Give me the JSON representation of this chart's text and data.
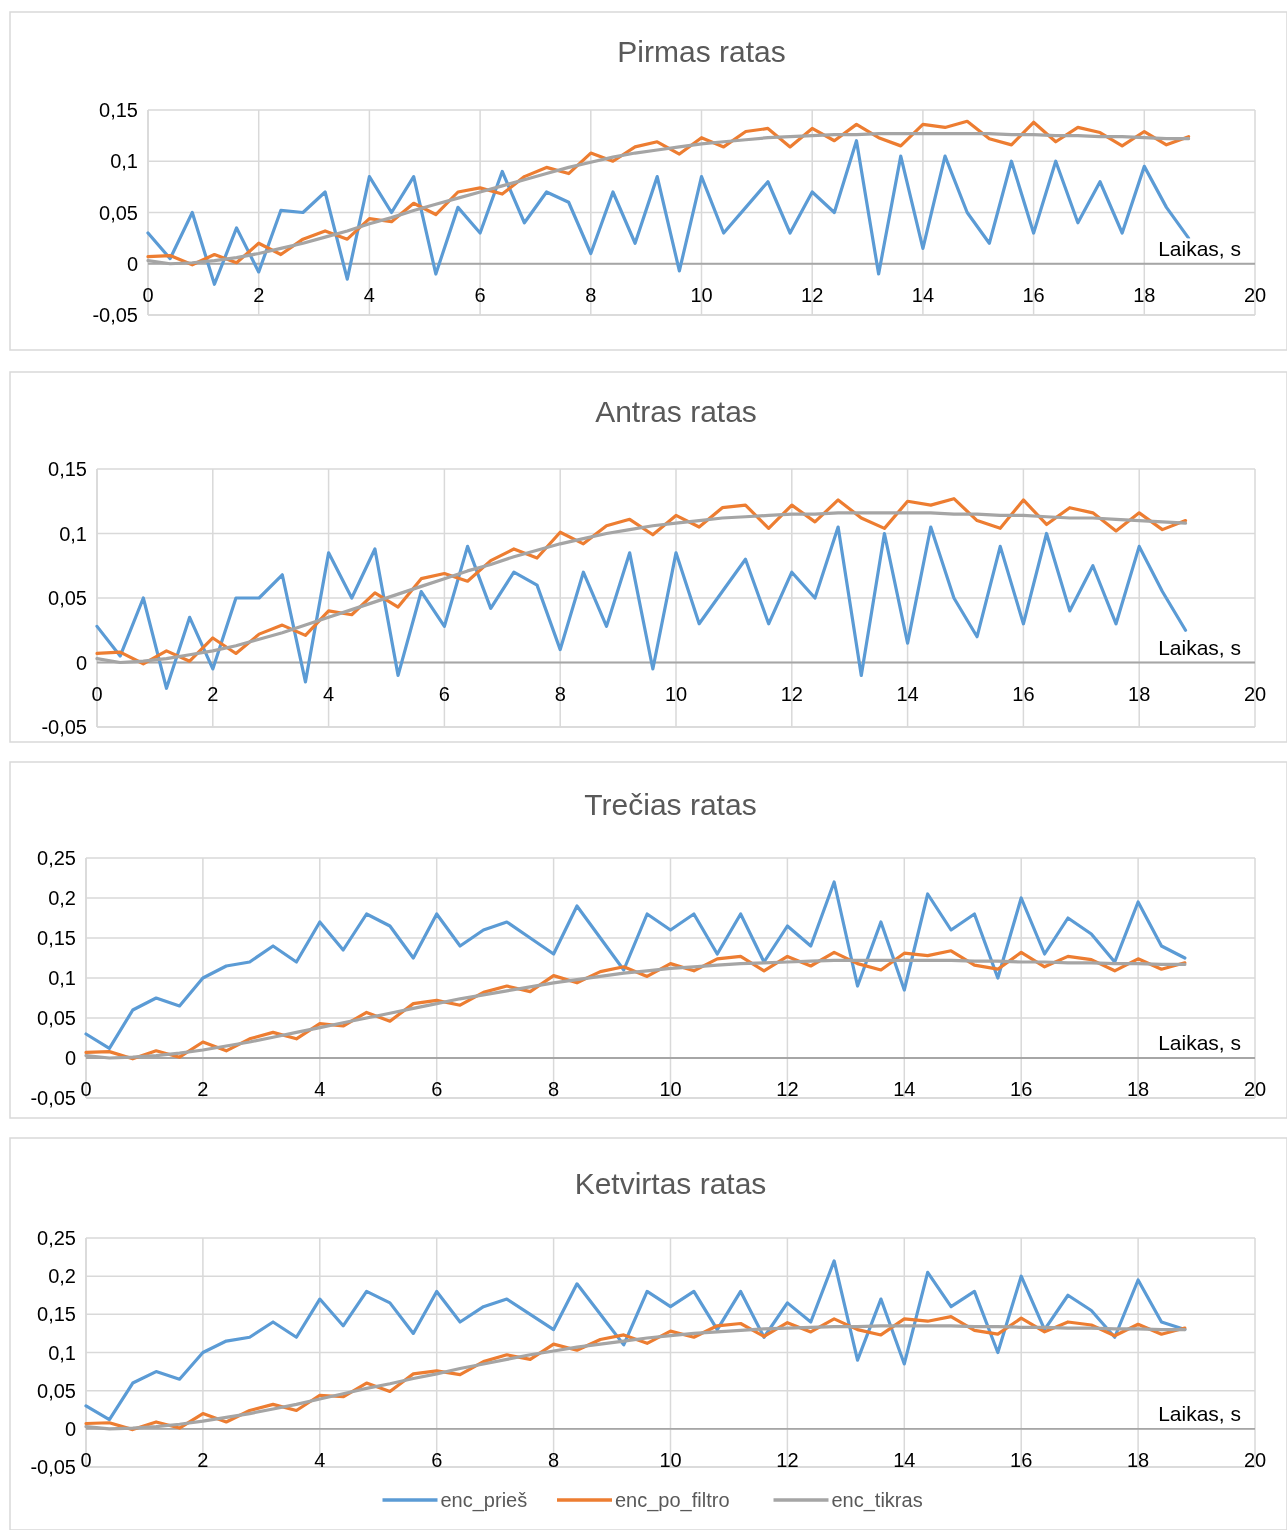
{
  "chart_data": [
    {
      "type": "line",
      "title": "Pirmas ratas",
      "xlabel": "Laikas, s",
      "xlim": [
        0,
        20
      ],
      "xticks": [
        0,
        2,
        4,
        6,
        8,
        10,
        12,
        14,
        16,
        18,
        20
      ],
      "ylim": [
        -0.05,
        0.15
      ],
      "yticks": [
        {
          "value": -0.05,
          "label": "-0,05"
        },
        {
          "value": 0,
          "label": "0"
        },
        {
          "value": 0.05,
          "label": "0,05"
        },
        {
          "value": 0.1,
          "label": "0,1"
        },
        {
          "value": 0.15,
          "label": "0,15"
        }
      ],
      "grid": true,
      "legend": false,
      "line_style": "solid",
      "marker": "none",
      "x": [
        0,
        0.4,
        0.8,
        1.2,
        1.6,
        2,
        2.4,
        2.8,
        3.2,
        3.6,
        4,
        4.4,
        4.8,
        5.2,
        5.6,
        6,
        6.4,
        6.8,
        7.2,
        7.6,
        8,
        8.4,
        8.8,
        9.2,
        9.6,
        10,
        10.4,
        10.8,
        11.2,
        11.6,
        12,
        12.4,
        12.8,
        13.2,
        13.6,
        14,
        14.4,
        14.8,
        15.2,
        15.6,
        16,
        16.4,
        16.8,
        17.2,
        17.6,
        18,
        18.4,
        18.8
      ],
      "series": [
        {
          "color": "#5b9bd5",
          "values": [
            0.03,
            0.005,
            0.05,
            -0.02,
            0.035,
            -0.008,
            0.052,
            0.05,
            0.07,
            -0.015,
            0.085,
            0.05,
            0.085,
            -0.01,
            0.055,
            0.03,
            0.09,
            0.04,
            0.07,
            0.06,
            0.01,
            0.07,
            0.02,
            0.085,
            -0.007,
            0.085,
            0.03,
            0.055,
            0.08,
            0.03,
            0.07,
            0.05,
            0.12,
            -0.01,
            0.105,
            0.015,
            0.105,
            0.05,
            0.02,
            0.1,
            0.03,
            0.1,
            0.04,
            0.08,
            0.03,
            0.095,
            0.055,
            0.025
          ]
        },
        {
          "color": "#ed7d31",
          "values": [
            0.007,
            0.008,
            -0.001,
            0.009,
            0.001,
            0.02,
            0.009,
            0.024,
            0.032,
            0.024,
            0.044,
            0.041,
            0.059,
            0.048,
            0.07,
            0.074,
            0.068,
            0.085,
            0.094,
            0.088,
            0.108,
            0.1,
            0.114,
            0.119,
            0.107,
            0.123,
            0.114,
            0.129,
            0.132,
            0.114,
            0.132,
            0.12,
            0.136,
            0.123,
            0.115,
            0.136,
            0.133,
            0.139,
            0.122,
            0.116,
            0.138,
            0.119,
            0.133,
            0.128,
            0.115,
            0.129,
            0.116,
            0.124
          ]
        },
        {
          "color": "#a5a5a5",
          "values": [
            0.003,
            0,
            0.001,
            0.003,
            0.006,
            0.01,
            0.015,
            0.02,
            0.026,
            0.032,
            0.039,
            0.045,
            0.052,
            0.058,
            0.064,
            0.07,
            0.076,
            0.082,
            0.088,
            0.094,
            0.099,
            0.104,
            0.108,
            0.111,
            0.114,
            0.117,
            0.119,
            0.121,
            0.123,
            0.124,
            0.125,
            0.126,
            0.126,
            0.127,
            0.127,
            0.127,
            0.127,
            0.127,
            0.127,
            0.126,
            0.126,
            0.125,
            0.125,
            0.124,
            0.124,
            0.123,
            0.122,
            0.122
          ]
        }
      ]
    },
    {
      "type": "line",
      "title": "Antras ratas",
      "xlabel": "Laikas, s",
      "xlim": [
        0,
        20
      ],
      "xticks": [
        0,
        2,
        4,
        6,
        8,
        10,
        12,
        14,
        16,
        18,
        20
      ],
      "ylim": [
        -0.05,
        0.15
      ],
      "yticks": [
        {
          "value": -0.05,
          "label": "-0,05"
        },
        {
          "value": 0,
          "label": "0"
        },
        {
          "value": 0.05,
          "label": "0,05"
        },
        {
          "value": 0.1,
          "label": "0,1"
        },
        {
          "value": 0.15,
          "label": "0,15"
        }
      ],
      "grid": true,
      "legend": false,
      "line_style": "solid",
      "marker": "none",
      "x": [
        0,
        0.4,
        0.8,
        1.2,
        1.6,
        2,
        2.4,
        2.8,
        3.2,
        3.6,
        4,
        4.4,
        4.8,
        5.2,
        5.6,
        6,
        6.4,
        6.8,
        7.2,
        7.6,
        8,
        8.4,
        8.8,
        9.2,
        9.6,
        10,
        10.4,
        10.8,
        11.2,
        11.6,
        12,
        12.4,
        12.8,
        13.2,
        13.6,
        14,
        14.4,
        14.8,
        15.2,
        15.6,
        16,
        16.4,
        16.8,
        17.2,
        17.6,
        18,
        18.4,
        18.8
      ],
      "series": [
        {
          "color": "#5b9bd5",
          "values": [
            0.028,
            0.005,
            0.05,
            -0.02,
            0.035,
            -0.005,
            0.05,
            0.05,
            0.068,
            -0.015,
            0.085,
            0.05,
            0.088,
            -0.01,
            0.055,
            0.028,
            0.09,
            0.042,
            0.07,
            0.06,
            0.01,
            0.07,
            0.028,
            0.085,
            -0.005,
            0.085,
            0.03,
            0.055,
            0.08,
            0.03,
            0.07,
            0.05,
            0.105,
            -0.01,
            0.1,
            0.015,
            0.105,
            0.05,
            0.02,
            0.09,
            0.03,
            0.1,
            0.04,
            0.075,
            0.03,
            0.09,
            0.055,
            0.025
          ]
        },
        {
          "color": "#ed7d31",
          "values": [
            0.007,
            0.008,
            -0.001,
            0.009,
            0.001,
            0.019,
            0.007,
            0.022,
            0.029,
            0.021,
            0.04,
            0.037,
            0.054,
            0.043,
            0.065,
            0.069,
            0.063,
            0.079,
            0.088,
            0.081,
            0.101,
            0.092,
            0.106,
            0.111,
            0.099,
            0.114,
            0.105,
            0.12,
            0.122,
            0.104,
            0.122,
            0.109,
            0.126,
            0.112,
            0.104,
            0.125,
            0.122,
            0.127,
            0.11,
            0.104,
            0.126,
            0.107,
            0.12,
            0.116,
            0.102,
            0.116,
            0.103,
            0.11
          ]
        },
        {
          "color": "#a5a5a5",
          "values": [
            0.003,
            0,
            0.001,
            0.003,
            0.006,
            0.009,
            0.013,
            0.018,
            0.023,
            0.029,
            0.035,
            0.041,
            0.047,
            0.053,
            0.059,
            0.065,
            0.071,
            0.076,
            0.082,
            0.087,
            0.092,
            0.096,
            0.1,
            0.103,
            0.106,
            0.108,
            0.11,
            0.112,
            0.113,
            0.114,
            0.115,
            0.115,
            0.116,
            0.116,
            0.116,
            0.116,
            0.116,
            0.115,
            0.115,
            0.114,
            0.114,
            0.113,
            0.112,
            0.112,
            0.111,
            0.11,
            0.109,
            0.108
          ]
        }
      ]
    },
    {
      "type": "line",
      "title": "Trečias ratas",
      "xlabel": "Laikas, s",
      "xlim": [
        0,
        20
      ],
      "xticks": [
        0,
        2,
        4,
        6,
        8,
        10,
        12,
        14,
        16,
        18,
        20
      ],
      "ylim": [
        -0.05,
        0.25
      ],
      "yticks": [
        {
          "value": -0.05,
          "label": "-0,05"
        },
        {
          "value": 0,
          "label": "0"
        },
        {
          "value": 0.05,
          "label": "0,05"
        },
        {
          "value": 0.1,
          "label": "0,1"
        },
        {
          "value": 0.15,
          "label": "0,15"
        },
        {
          "value": 0.2,
          "label": "0,2"
        },
        {
          "value": 0.25,
          "label": "0,25"
        }
      ],
      "grid": true,
      "legend": false,
      "line_style": "solid",
      "marker": "none",
      "x": [
        0,
        0.4,
        0.8,
        1.2,
        1.6,
        2,
        2.4,
        2.8,
        3.2,
        3.6,
        4,
        4.4,
        4.8,
        5.2,
        5.6,
        6,
        6.4,
        6.8,
        7.2,
        7.6,
        8,
        8.4,
        8.8,
        9.2,
        9.6,
        10,
        10.4,
        10.8,
        11.2,
        11.6,
        12,
        12.4,
        12.8,
        13.2,
        13.6,
        14,
        14.4,
        14.8,
        15.2,
        15.6,
        16,
        16.4,
        16.8,
        17.2,
        17.6,
        18,
        18.4,
        18.8
      ],
      "series": [
        {
          "color": "#5b9bd5",
          "values": [
            0.03,
            0.012,
            0.06,
            0.075,
            0.065,
            0.1,
            0.115,
            0.12,
            0.14,
            0.12,
            0.17,
            0.135,
            0.18,
            0.165,
            0.125,
            0.18,
            0.14,
            0.16,
            0.17,
            0.15,
            0.13,
            0.19,
            0.15,
            0.11,
            0.18,
            0.16,
            0.18,
            0.13,
            0.18,
            0.12,
            0.165,
            0.14,
            0.22,
            0.09,
            0.17,
            0.085,
            0.205,
            0.16,
            0.18,
            0.1,
            0.2,
            0.13,
            0.175,
            0.155,
            0.12,
            0.195,
            0.14,
            0.125
          ]
        },
        {
          "color": "#ed7d31",
          "values": [
            0.007,
            0.008,
            -0.001,
            0.009,
            0.001,
            0.02,
            0.009,
            0.024,
            0.032,
            0.024,
            0.043,
            0.04,
            0.057,
            0.046,
            0.068,
            0.072,
            0.066,
            0.082,
            0.09,
            0.083,
            0.103,
            0.094,
            0.108,
            0.114,
            0.102,
            0.118,
            0.109,
            0.124,
            0.127,
            0.109,
            0.127,
            0.115,
            0.132,
            0.118,
            0.11,
            0.131,
            0.128,
            0.134,
            0.116,
            0.111,
            0.132,
            0.114,
            0.127,
            0.123,
            0.109,
            0.124,
            0.111,
            0.119
          ]
        },
        {
          "color": "#a5a5a5",
          "values": [
            0.003,
            0,
            0.001,
            0.003,
            0.006,
            0.01,
            0.015,
            0.02,
            0.026,
            0.032,
            0.038,
            0.044,
            0.05,
            0.056,
            0.062,
            0.068,
            0.074,
            0.079,
            0.084,
            0.089,
            0.094,
            0.098,
            0.102,
            0.106,
            0.109,
            0.112,
            0.114,
            0.116,
            0.118,
            0.119,
            0.12,
            0.121,
            0.122,
            0.122,
            0.122,
            0.122,
            0.122,
            0.122,
            0.121,
            0.121,
            0.12,
            0.12,
            0.119,
            0.119,
            0.118,
            0.118,
            0.117,
            0.117
          ]
        }
      ]
    },
    {
      "type": "line",
      "title": "Ketvirtas ratas",
      "xlabel": "Laikas, s",
      "xlim": [
        0,
        20
      ],
      "xticks": [
        0,
        2,
        4,
        6,
        8,
        10,
        12,
        14,
        16,
        18,
        20
      ],
      "ylim": [
        -0.05,
        0.25
      ],
      "yticks": [
        {
          "value": -0.05,
          "label": "-0,05"
        },
        {
          "value": 0,
          "label": "0"
        },
        {
          "value": 0.05,
          "label": "0,05"
        },
        {
          "value": 0.1,
          "label": "0,1"
        },
        {
          "value": 0.15,
          "label": "0,15"
        },
        {
          "value": 0.2,
          "label": "0,2"
        },
        {
          "value": 0.25,
          "label": "0,25"
        }
      ],
      "grid": true,
      "legend": "bottom",
      "line_style": "solid",
      "marker": "none",
      "x": [
        0,
        0.4,
        0.8,
        1.2,
        1.6,
        2,
        2.4,
        2.8,
        3.2,
        3.6,
        4,
        4.4,
        4.8,
        5.2,
        5.6,
        6,
        6.4,
        6.8,
        7.2,
        7.6,
        8,
        8.4,
        8.8,
        9.2,
        9.6,
        10,
        10.4,
        10.8,
        11.2,
        11.6,
        12,
        12.4,
        12.8,
        13.2,
        13.6,
        14,
        14.4,
        14.8,
        15.2,
        15.6,
        16,
        16.4,
        16.8,
        17.2,
        17.6,
        18,
        18.4,
        18.8
      ],
      "series": [
        {
          "name": "enc_prieš",
          "color": "#5b9bd5",
          "values": [
            0.03,
            0.012,
            0.06,
            0.075,
            0.065,
            0.1,
            0.115,
            0.12,
            0.14,
            0.12,
            0.17,
            0.135,
            0.18,
            0.165,
            0.125,
            0.18,
            0.14,
            0.16,
            0.17,
            0.15,
            0.13,
            0.19,
            0.15,
            0.11,
            0.18,
            0.16,
            0.18,
            0.13,
            0.18,
            0.12,
            0.165,
            0.14,
            0.22,
            0.09,
            0.17,
            0.085,
            0.205,
            0.16,
            0.18,
            0.1,
            0.2,
            0.13,
            0.175,
            0.155,
            0.12,
            0.195,
            0.14,
            0.13
          ]
        },
        {
          "name": "enc_po_filtro",
          "color": "#ed7d31",
          "values": [
            0.007,
            0.008,
            -0.001,
            0.009,
            0.001,
            0.02,
            0.009,
            0.024,
            0.032,
            0.024,
            0.044,
            0.042,
            0.06,
            0.049,
            0.072,
            0.076,
            0.071,
            0.088,
            0.097,
            0.091,
            0.111,
            0.103,
            0.117,
            0.123,
            0.112,
            0.128,
            0.12,
            0.135,
            0.138,
            0.121,
            0.139,
            0.127,
            0.144,
            0.13,
            0.123,
            0.144,
            0.141,
            0.147,
            0.129,
            0.124,
            0.145,
            0.127,
            0.14,
            0.136,
            0.122,
            0.137,
            0.124,
            0.132
          ]
        },
        {
          "name": "enc_tikras",
          "color": "#a5a5a5",
          "values": [
            0.003,
            0,
            0.001,
            0.003,
            0.006,
            0.01,
            0.015,
            0.02,
            0.026,
            0.032,
            0.039,
            0.046,
            0.053,
            0.059,
            0.066,
            0.072,
            0.079,
            0.085,
            0.091,
            0.097,
            0.102,
            0.107,
            0.111,
            0.115,
            0.119,
            0.122,
            0.125,
            0.127,
            0.129,
            0.131,
            0.132,
            0.133,
            0.134,
            0.134,
            0.135,
            0.135,
            0.135,
            0.135,
            0.134,
            0.134,
            0.133,
            0.133,
            0.132,
            0.132,
            0.131,
            0.131,
            0.13,
            0.13
          ]
        }
      ]
    }
  ]
}
